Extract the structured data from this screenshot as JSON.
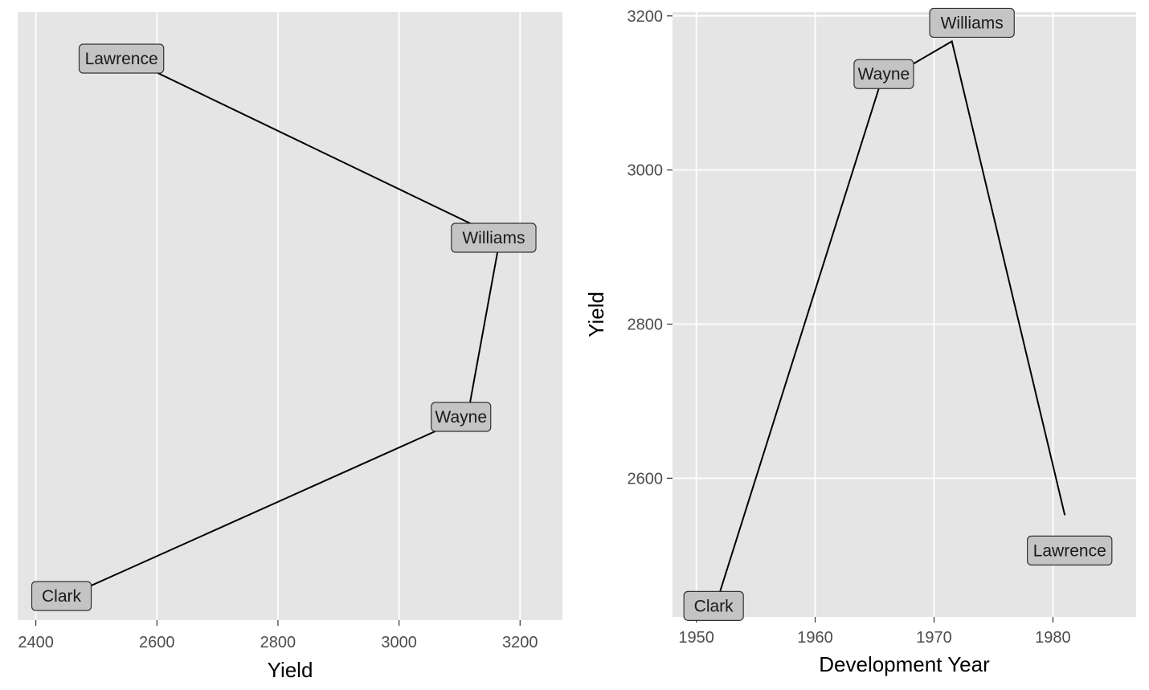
{
  "chart_data": [
    {
      "type": "line",
      "xlabel": "Yield",
      "ylabel": "",
      "xlim": [
        2370,
        3270
      ],
      "xticks": [
        2400,
        2600,
        2800,
        3000,
        3200
      ],
      "y_grid": false,
      "points": [
        {
          "label": "Clark",
          "yield": 2453,
          "y_label": 2453,
          "rank": 1
        },
        {
          "label": "Wayne",
          "yield": 3113,
          "y_label": 3113,
          "rank": 2
        },
        {
          "label": "Williams",
          "yield": 3167,
          "y_label": 3167,
          "rank": 3
        },
        {
          "label": "Lawrence",
          "yield": 2552,
          "y_label": 2552,
          "rank": 4
        }
      ]
    },
    {
      "type": "line",
      "xlabel": "Development Year",
      "ylabel": "Yield",
      "xlim": [
        1948,
        1987
      ],
      "ylim": [
        2420,
        3205
      ],
      "xticks": [
        1950,
        1960,
        1970,
        1980
      ],
      "yticks": [
        2600,
        2800,
        3000,
        3200
      ],
      "points": [
        {
          "label": "Clark",
          "year": 1952,
          "yield": 2453
        },
        {
          "label": "Wayne",
          "year": 1965.5,
          "yield": 3113
        },
        {
          "label": "Williams",
          "year": 1971.5,
          "yield": 3167
        },
        {
          "label": "Lawrence",
          "year": 1981,
          "yield": 2552
        }
      ]
    }
  ]
}
